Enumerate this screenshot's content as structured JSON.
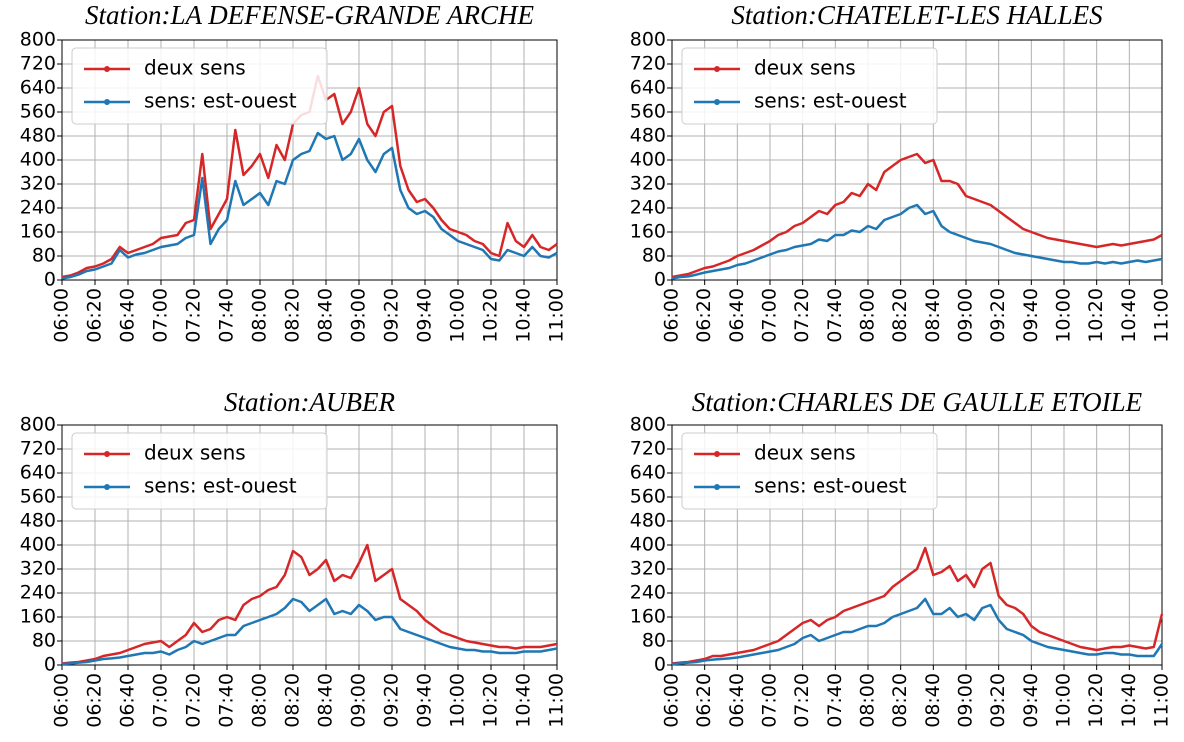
{
  "chart_data": [
    {
      "type": "line",
      "title": "Station:LA DEFENSE-GRANDE ARCHE",
      "categories": [
        "06:00",
        null,
        null,
        null,
        "06:20",
        null,
        null,
        null,
        "06:40",
        null,
        null,
        null,
        "07:00",
        null,
        null,
        null,
        "07:20",
        null,
        null,
        null,
        "07:40",
        null,
        null,
        null,
        "08:00",
        null,
        null,
        null,
        "08:20",
        null,
        null,
        null,
        "08:40",
        null,
        null,
        null,
        "09:00",
        null,
        null,
        null,
        "09:20",
        null,
        null,
        null,
        "09:40",
        null,
        null,
        null,
        "10:00",
        null,
        null,
        null,
        "10:20",
        null,
        null,
        null,
        "10:40",
        null,
        null,
        null,
        "11:00"
      ],
      "series": [
        {
          "name": "deux sens",
          "color": "#d62728",
          "values": [
            10,
            15,
            25,
            40,
            45,
            55,
            70,
            110,
            90,
            100,
            110,
            120,
            140,
            145,
            150,
            190,
            200,
            420,
            170,
            220,
            270,
            500,
            350,
            380,
            420,
            340,
            450,
            400,
            520,
            550,
            560,
            680,
            600,
            620,
            520,
            560,
            640,
            520,
            480,
            560,
            580,
            380,
            300,
            260,
            270,
            240,
            200,
            170,
            160,
            150,
            130,
            120,
            90,
            80,
            190,
            130,
            110,
            150,
            110,
            100,
            120
          ]
        },
        {
          "name": "sens: est-ouest",
          "color": "#1f77b4",
          "values": [
            5,
            10,
            18,
            30,
            35,
            45,
            55,
            100,
            75,
            85,
            90,
            100,
            110,
            115,
            120,
            140,
            150,
            340,
            120,
            170,
            200,
            330,
            250,
            270,
            290,
            250,
            330,
            320,
            400,
            420,
            430,
            490,
            470,
            480,
            400,
            420,
            470,
            400,
            360,
            420,
            440,
            300,
            240,
            220,
            230,
            210,
            170,
            150,
            130,
            120,
            110,
            100,
            70,
            65,
            100,
            90,
            80,
            110,
            80,
            75,
            90
          ]
        }
      ],
      "ylim": [
        0,
        800
      ],
      "yticks": [
        0,
        80,
        160,
        240,
        320,
        400,
        480,
        560,
        640,
        720,
        800
      ],
      "grid": true,
      "legend": "upper left"
    },
    {
      "type": "line",
      "title": "Station:CHATELET-LES HALLES",
      "categories": [
        "06:00",
        null,
        null,
        null,
        "06:20",
        null,
        null,
        null,
        "06:40",
        null,
        null,
        null,
        "07:00",
        null,
        null,
        null,
        "07:20",
        null,
        null,
        null,
        "07:40",
        null,
        null,
        null,
        "08:00",
        null,
        null,
        null,
        "08:20",
        null,
        null,
        null,
        "08:40",
        null,
        null,
        null,
        "09:00",
        null,
        null,
        null,
        "09:20",
        null,
        null,
        null,
        "09:40",
        null,
        null,
        null,
        "10:00",
        null,
        null,
        null,
        "10:20",
        null,
        null,
        null,
        "10:40",
        null,
        null,
        null,
        "11:00"
      ],
      "series": [
        {
          "name": "deux sens",
          "color": "#d62728",
          "values": [
            10,
            15,
            20,
            30,
            40,
            45,
            55,
            65,
            80,
            90,
            100,
            115,
            130,
            150,
            160,
            180,
            190,
            210,
            230,
            220,
            250,
            260,
            290,
            280,
            320,
            300,
            360,
            380,
            400,
            410,
            420,
            390,
            400,
            330,
            330,
            320,
            280,
            270,
            260,
            250,
            230,
            210,
            190,
            170,
            160,
            150,
            140,
            135,
            130,
            125,
            120,
            115,
            110,
            115,
            120,
            115,
            120,
            125,
            130,
            135,
            150
          ]
        },
        {
          "name": "sens: est-ouest",
          "color": "#1f77b4",
          "values": [
            5,
            10,
            12,
            18,
            25,
            30,
            35,
            40,
            50,
            55,
            65,
            75,
            85,
            95,
            100,
            110,
            115,
            120,
            135,
            130,
            150,
            150,
            165,
            160,
            180,
            170,
            200,
            210,
            220,
            240,
            250,
            220,
            230,
            180,
            160,
            150,
            140,
            130,
            125,
            120,
            110,
            100,
            90,
            85,
            80,
            75,
            70,
            65,
            60,
            60,
            55,
            55,
            60,
            55,
            60,
            55,
            60,
            65,
            60,
            65,
            70
          ]
        }
      ],
      "ylim": [
        0,
        800
      ],
      "yticks": [
        0,
        80,
        160,
        240,
        320,
        400,
        480,
        560,
        640,
        720,
        800
      ],
      "grid": true,
      "legend": "upper left"
    },
    {
      "type": "line",
      "title": "Station:AUBER",
      "categories": [
        "06:00",
        null,
        null,
        null,
        "06:20",
        null,
        null,
        null,
        "06:40",
        null,
        null,
        null,
        "07:00",
        null,
        null,
        null,
        "07:20",
        null,
        null,
        null,
        "07:40",
        null,
        null,
        null,
        "08:00",
        null,
        null,
        null,
        "08:20",
        null,
        null,
        null,
        "08:40",
        null,
        null,
        null,
        "09:00",
        null,
        null,
        null,
        "09:20",
        null,
        null,
        null,
        "09:40",
        null,
        null,
        null,
        "10:00",
        null,
        null,
        null,
        "10:20",
        null,
        null,
        null,
        "10:40",
        null,
        null,
        null,
        "11:00"
      ],
      "series": [
        {
          "name": "deux sens",
          "color": "#d62728",
          "values": [
            5,
            8,
            10,
            15,
            20,
            30,
            35,
            40,
            50,
            60,
            70,
            75,
            80,
            60,
            80,
            100,
            140,
            110,
            120,
            150,
            160,
            150,
            200,
            220,
            230,
            250,
            260,
            300,
            380,
            360,
            300,
            320,
            350,
            280,
            300,
            290,
            340,
            400,
            280,
            300,
            320,
            220,
            200,
            180,
            150,
            130,
            110,
            100,
            90,
            80,
            75,
            70,
            65,
            60,
            60,
            55,
            60,
            60,
            60,
            65,
            70
          ]
        },
        {
          "name": "sens: est-ouest",
          "color": "#1f77b4",
          "values": [
            3,
            5,
            8,
            10,
            15,
            20,
            22,
            25,
            30,
            35,
            40,
            40,
            45,
            35,
            50,
            60,
            80,
            70,
            80,
            90,
            100,
            100,
            130,
            140,
            150,
            160,
            170,
            190,
            220,
            210,
            180,
            200,
            220,
            170,
            180,
            170,
            200,
            180,
            150,
            160,
            160,
            120,
            110,
            100,
            90,
            80,
            70,
            60,
            55,
            50,
            50,
            45,
            45,
            40,
            40,
            40,
            45,
            45,
            45,
            50,
            55
          ]
        }
      ],
      "ylim": [
        0,
        800
      ],
      "yticks": [
        0,
        80,
        160,
        240,
        320,
        400,
        480,
        560,
        640,
        720,
        800
      ],
      "grid": true,
      "legend": "upper left"
    },
    {
      "type": "line",
      "title": "Station:CHARLES DE GAULLE ETOILE",
      "categories": [
        "06:00",
        null,
        null,
        null,
        "06:20",
        null,
        null,
        null,
        "06:40",
        null,
        null,
        null,
        "07:00",
        null,
        null,
        null,
        "07:20",
        null,
        null,
        null,
        "07:40",
        null,
        null,
        null,
        "08:00",
        null,
        null,
        null,
        "08:20",
        null,
        null,
        null,
        "08:40",
        null,
        null,
        null,
        "09:00",
        null,
        null,
        null,
        "09:20",
        null,
        null,
        null,
        "09:40",
        null,
        null,
        null,
        "10:00",
        null,
        null,
        null,
        "10:20",
        null,
        null,
        null,
        "10:40",
        null,
        null,
        null,
        "11:00"
      ],
      "series": [
        {
          "name": "deux sens",
          "color": "#d62728",
          "values": [
            5,
            8,
            10,
            15,
            20,
            30,
            30,
            35,
            40,
            45,
            50,
            60,
            70,
            80,
            100,
            120,
            140,
            150,
            130,
            150,
            160,
            180,
            190,
            200,
            210,
            220,
            230,
            260,
            280,
            300,
            320,
            390,
            300,
            310,
            330,
            280,
            300,
            260,
            320,
            340,
            230,
            200,
            190,
            170,
            130,
            110,
            100,
            90,
            80,
            70,
            60,
            55,
            50,
            55,
            60,
            60,
            65,
            60,
            55,
            60,
            170
          ]
        },
        {
          "name": "sens: est-ouest",
          "color": "#1f77b4",
          "values": [
            3,
            5,
            8,
            10,
            15,
            18,
            20,
            22,
            25,
            30,
            35,
            40,
            45,
            50,
            60,
            70,
            90,
            100,
            80,
            90,
            100,
            110,
            110,
            120,
            130,
            130,
            140,
            160,
            170,
            180,
            190,
            220,
            170,
            170,
            190,
            160,
            170,
            150,
            190,
            200,
            150,
            120,
            110,
            100,
            80,
            70,
            60,
            55,
            50,
            45,
            40,
            35,
            35,
            40,
            40,
            35,
            35,
            30,
            30,
            30,
            70
          ]
        }
      ],
      "ylim": [
        0,
        800
      ],
      "yticks": [
        0,
        80,
        160,
        240,
        320,
        400,
        480,
        560,
        640,
        720,
        800
      ],
      "grid": true,
      "legend": "upper left"
    }
  ]
}
